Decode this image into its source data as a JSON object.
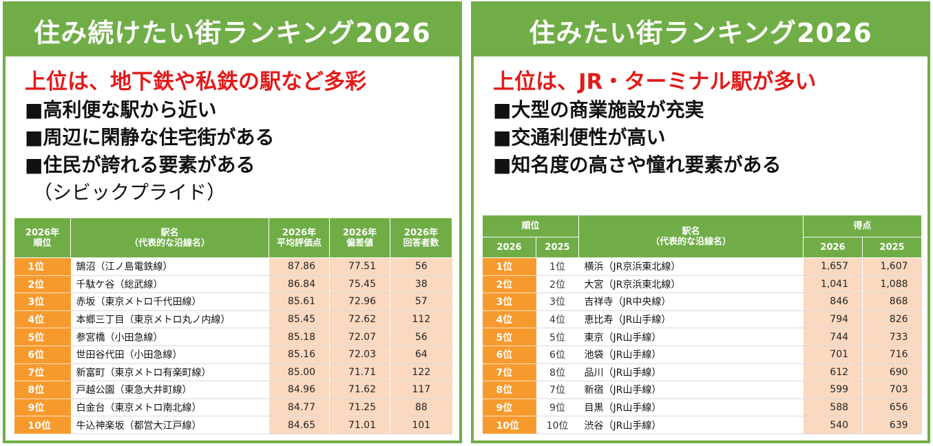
{
  "left": {
    "title": "住み続けたい街ランキング2026",
    "lead": "上位は、地下鉄や私鉄の駅など多彩",
    "bullets": [
      "■高利便な駅から近い",
      "■周辺に閑静な住宅街がある",
      "■住民が誇れる要素がある"
    ],
    "bullet_sub": "（シビックプライド）",
    "table": {
      "headers": [
        "2026年\n順位",
        "駅名\n（代表的な沿線名）",
        "2026年\n平均評価点",
        "2026年\n偏差値",
        "2026年\n回答者数"
      ],
      "rows": [
        {
          "rank": "1位",
          "station": "鵠沼（江ノ島電鉄線）",
          "score": "87.86",
          "dev": "77.51",
          "resp": "56"
        },
        {
          "rank": "2位",
          "station": "千駄ケ谷（総武線）",
          "score": "86.84",
          "dev": "75.45",
          "resp": "38"
        },
        {
          "rank": "3位",
          "station": "赤坂（東京メトロ千代田線）",
          "score": "85.61",
          "dev": "72.96",
          "resp": "57"
        },
        {
          "rank": "4位",
          "station": "本郷三丁目（東京メトロ丸ノ内線）",
          "score": "85.45",
          "dev": "72.62",
          "resp": "112"
        },
        {
          "rank": "5位",
          "station": "参宮橋（小田急線）",
          "score": "85.18",
          "dev": "72.07",
          "resp": "56"
        },
        {
          "rank": "6位",
          "station": "世田谷代田（小田急線）",
          "score": "85.16",
          "dev": "72.03",
          "resp": "64"
        },
        {
          "rank": "7位",
          "station": "新富町（東京メトロ有楽町線）",
          "score": "85.00",
          "dev": "71.71",
          "resp": "122"
        },
        {
          "rank": "8位",
          "station": "戸越公園（東急大井町線）",
          "score": "84.96",
          "dev": "71.62",
          "resp": "117"
        },
        {
          "rank": "9位",
          "station": "白金台（東京メトロ南北線）",
          "score": "84.77",
          "dev": "71.25",
          "resp": "88"
        },
        {
          "rank": "10位",
          "station": "牛込神楽坂（都営大江戸線）",
          "score": "84.65",
          "dev": "71.01",
          "resp": "101"
        }
      ]
    }
  },
  "right": {
    "title": "住みたい街ランキング2026",
    "lead": "上位は、JR・ターミナル駅が多い",
    "bullets": [
      "■大型の商業施設が充実",
      "■交通利便性が高い",
      "■知名度の高さや憧れ要素がある"
    ],
    "table": {
      "header_rank": "順位",
      "header_station": "駅名\n（代表的な沿線名）",
      "header_points": "得点",
      "header_year_a": "2026",
      "header_year_b": "2025",
      "rows": [
        {
          "rank": "1位",
          "prev": "1位",
          "station": "横浜（JR京浜東北線）",
          "p2026": "1,657",
          "p2025": "1,607"
        },
        {
          "rank": "2位",
          "prev": "2位",
          "station": "大宮（JR京浜東北線）",
          "p2026": "1,041",
          "p2025": "1,088"
        },
        {
          "rank": "3位",
          "prev": "3位",
          "station": "吉祥寺（JR中央線）",
          "p2026": "846",
          "p2025": "868"
        },
        {
          "rank": "4位",
          "prev": "4位",
          "station": "恵比寿（JR山手線）",
          "p2026": "794",
          "p2025": "826"
        },
        {
          "rank": "5位",
          "prev": "5位",
          "station": "東京（JR山手線）",
          "p2026": "744",
          "p2025": "733"
        },
        {
          "rank": "6位",
          "prev": "6位",
          "station": "池袋（JR山手線）",
          "p2026": "701",
          "p2025": "716"
        },
        {
          "rank": "7位",
          "prev": "8位",
          "station": "品川（JR山手線）",
          "p2026": "612",
          "p2025": "690"
        },
        {
          "rank": "8位",
          "prev": "7位",
          "station": "新宿（JR山手線）",
          "p2026": "599",
          "p2025": "703"
        },
        {
          "rank": "9位",
          "prev": "9位",
          "station": "目黒（JR山手線）",
          "p2026": "588",
          "p2025": "656"
        },
        {
          "rank": "10位",
          "prev": "10位",
          "station": "渋谷（JR山手線）",
          "p2026": "540",
          "p2025": "639"
        }
      ]
    }
  },
  "colors": {
    "green": "#70ad47",
    "orange": "#f79a2e",
    "peach": "#fbd9c0",
    "red": "#e11b1b"
  }
}
